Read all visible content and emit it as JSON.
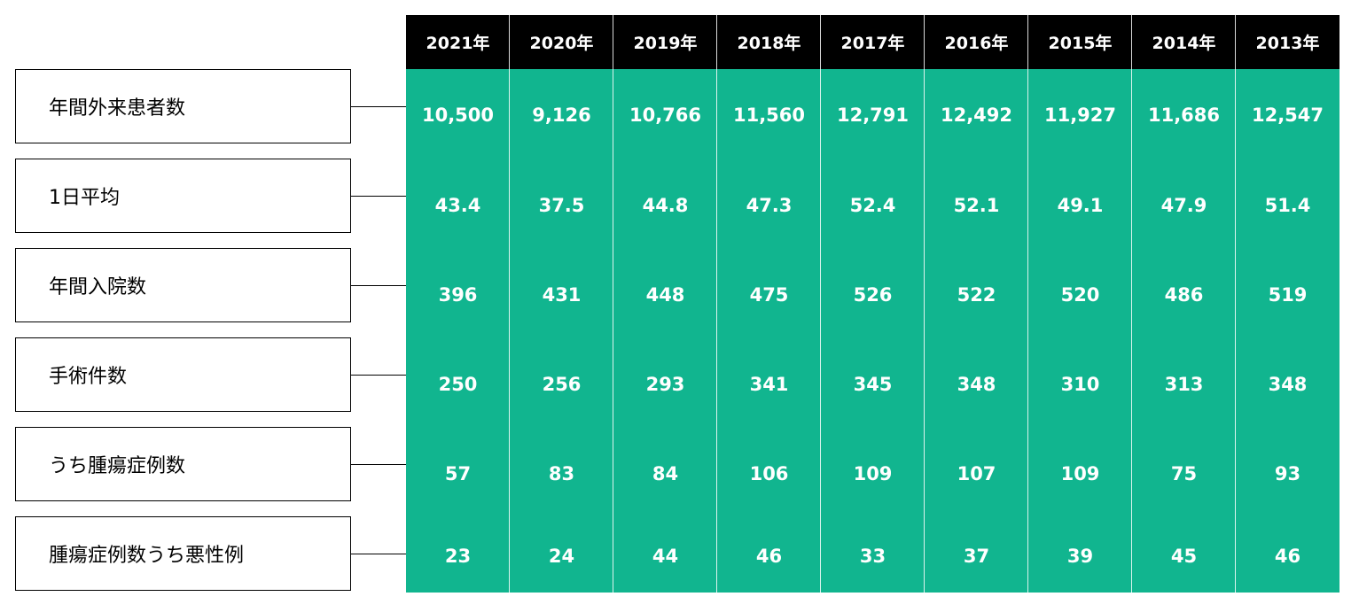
{
  "chart_data": {
    "type": "table",
    "columns": [
      "2021年",
      "2020年",
      "2019年",
      "2018年",
      "2017年",
      "2016年",
      "2015年",
      "2014年",
      "2013年"
    ],
    "rows": [
      {
        "label": "年間外来患者数",
        "values": [
          "10,500",
          "9,126",
          "10,766",
          "11,560",
          "12,791",
          "12,492",
          "11,927",
          "11,686",
          "12,547"
        ]
      },
      {
        "label": "1日平均",
        "values": [
          "43.4",
          "37.5",
          "44.8",
          "47.3",
          "52.4",
          "52.1",
          "49.1",
          "47.9",
          "51.4"
        ]
      },
      {
        "label": "年間入院数",
        "values": [
          "396",
          "431",
          "448",
          "475",
          "526",
          "522",
          "520",
          "486",
          "519"
        ]
      },
      {
        "label": "手術件数",
        "values": [
          "250",
          "256",
          "293",
          "341",
          "345",
          "348",
          "310",
          "313",
          "348"
        ]
      },
      {
        "label": "うち腫瘍症例数",
        "values": [
          "57",
          "83",
          "84",
          "106",
          "109",
          "107",
          "109",
          "75",
          "93"
        ]
      },
      {
        "label": "腫瘍症例数うち悪性例",
        "values": [
          "23",
          "24",
          "44",
          "46",
          "33",
          "37",
          "39",
          "45",
          "46"
        ]
      }
    ],
    "colors": {
      "header_bg": "#000000",
      "header_text": "#ffffff",
      "cell_bg": "#11b58f",
      "cell_text": "#ffffff"
    }
  }
}
